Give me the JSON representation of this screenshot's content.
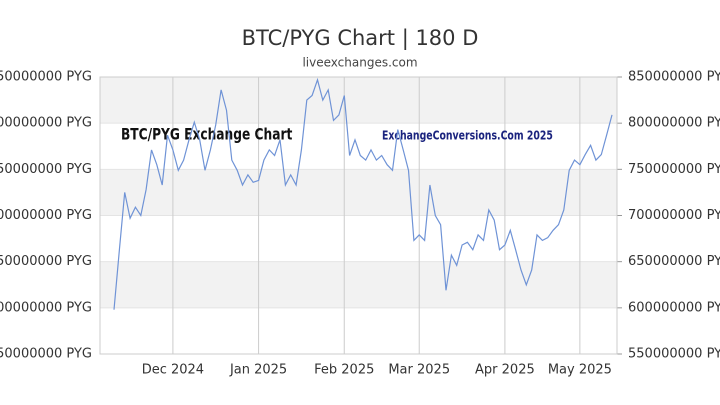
{
  "chart_data": {
    "type": "line",
    "title": "BTC/PYG Chart | 180 D",
    "subtitle": "liveexchanges.com",
    "annotations": [
      "BTC/PYG Exchange Chart",
      "ExchangeConversions.Com 2025"
    ],
    "color": "#6f93d6",
    "grid": true,
    "categories": [
      null,
      null,
      null,
      null,
      null,
      null,
      null,
      null,
      null,
      null,
      null,
      "Dec 2024",
      null,
      null,
      null,
      null,
      null,
      null,
      null,
      null,
      null,
      null,
      null,
      null,
      null,
      null,
      null,
      "Jan 2025",
      null,
      null,
      null,
      null,
      null,
      null,
      null,
      null,
      null,
      null,
      null,
      null,
      null,
      null,
      null,
      "Feb 2025",
      null,
      null,
      null,
      null,
      null,
      null,
      null,
      null,
      null,
      null,
      null,
      null,
      null,
      "Mar 2025",
      null,
      null,
      null,
      null,
      null,
      null,
      null,
      null,
      null,
      null,
      null,
      null,
      null,
      null,
      null,
      "Apr 2025",
      null,
      null,
      null,
      null,
      null,
      null,
      null,
      null,
      null,
      null,
      null,
      null,
      null,
      "May 2025",
      null,
      null,
      null,
      null,
      null,
      null
    ],
    "values": [
      598000000,
      663000000,
      725000000,
      697000000,
      709000000,
      700000000,
      728000000,
      771000000,
      755000000,
      733000000,
      787000000,
      771000000,
      749000000,
      760000000,
      782000000,
      801000000,
      782000000,
      749000000,
      771000000,
      798000000,
      836000000,
      814000000,
      760000000,
      749000000,
      733000000,
      744000000,
      736000000,
      738000000,
      760000000,
      771000000,
      765000000,
      782000000,
      733000000,
      744000000,
      733000000,
      771000000,
      825000000,
      830000000,
      847000000,
      825000000,
      836000000,
      803000000,
      809000000,
      830000000,
      765000000,
      782000000,
      765000000,
      760000000,
      771000000,
      760000000,
      765000000,
      755000000,
      749000000,
      793000000,
      771000000,
      749000000,
      673000000,
      679000000,
      673000000,
      733000000,
      700000000,
      690000000,
      619000000,
      657000000,
      646000000,
      668000000,
      671000000,
      663000000,
      679000000,
      673000000,
      706000000,
      695000000,
      663000000,
      668000000,
      684000000,
      663000000,
      641000000,
      625000000,
      641000000,
      679000000,
      673000000,
      676000000,
      684000000,
      690000000,
      706000000,
      749000000,
      760000000,
      755000000,
      766000000,
      776000000,
      760000000,
      766000000,
      787000000,
      809000000
    ],
    "ylim": [
      550000000,
      850000000
    ],
    "yticks": [
      {
        "value": 550000000,
        "label": "550000000 PYG"
      },
      {
        "value": 600000000,
        "label": "600000000 PYG"
      },
      {
        "value": 650000000,
        "label": "650000000 PYG"
      },
      {
        "value": 700000000,
        "label": "700000000 PYG"
      },
      {
        "value": 750000000,
        "label": "750000000 PYG"
      },
      {
        "value": 800000000,
        "label": "800000000 PYG"
      },
      {
        "value": 850000000,
        "label": "850000000 PYG"
      }
    ]
  }
}
